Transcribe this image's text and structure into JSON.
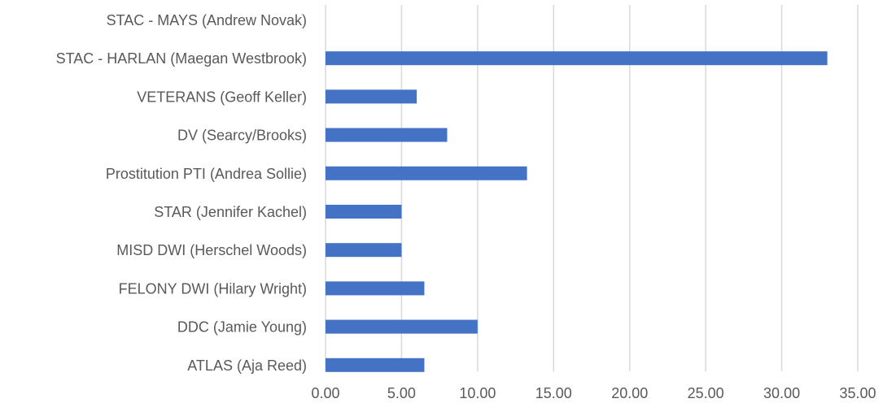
{
  "chart_data": {
    "type": "bar",
    "orientation": "horizontal",
    "categories": [
      "STAC - MAYS (Andrew Novak)",
      "STAC - HARLAN (Maegan Westbrook)",
      "VETERANS (Geoff Keller)",
      "DV (Searcy/Brooks)",
      "Prostitution PTI (Andrea Sollie)",
      "STAR (Jennifer Kachel)",
      "MISD DWI (Herschel Woods)",
      "FELONY DWI (Hilary Wright)",
      "DDC (Jamie Young)",
      "ATLAS (Aja Reed)"
    ],
    "values": [
      0,
      33.0,
      6.0,
      8.0,
      13.25,
      5.0,
      5.0,
      6.5,
      10.0,
      6.5
    ],
    "xlim": [
      0,
      35
    ],
    "xticks": [
      0,
      5,
      10,
      15,
      20,
      25,
      30,
      35
    ],
    "xtick_labels": [
      "0.00",
      "5.00",
      "10.00",
      "15.00",
      "20.00",
      "25.00",
      "30.00",
      "35.00"
    ],
    "title": "",
    "xlabel": "",
    "ylabel": "",
    "grid": "vertical",
    "legend": "none",
    "bar_color": "#4472C4",
    "grid_color": "#D9D9D9",
    "text_color": "#595959"
  }
}
